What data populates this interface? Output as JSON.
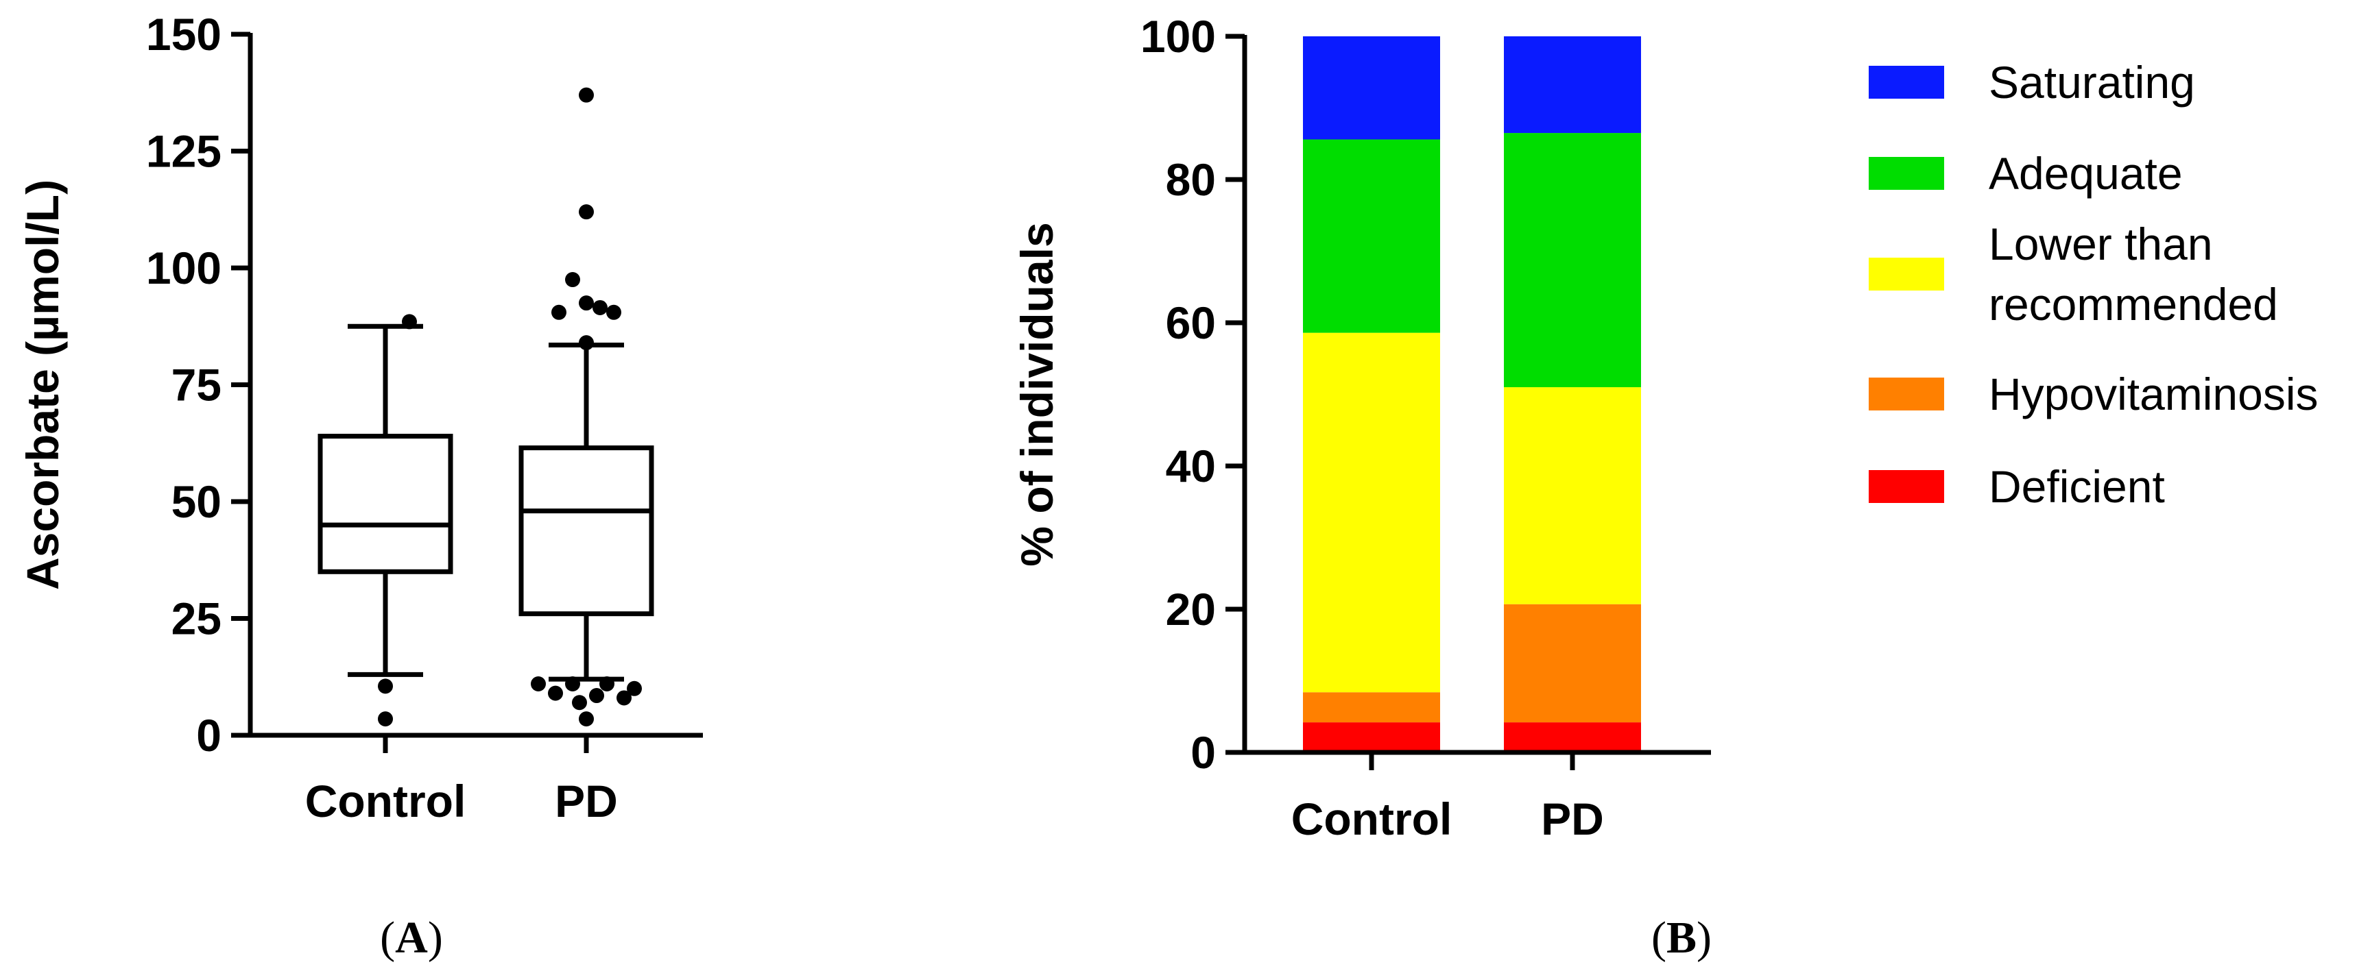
{
  "chart_data": [
    {
      "panel": "A",
      "type": "box",
      "ylabel": "Ascorbate (µmol/L)",
      "ylim": [
        0,
        150
      ],
      "yticks": [
        0,
        25,
        50,
        75,
        100,
        125,
        150
      ],
      "categories": [
        "Control",
        "PD"
      ],
      "boxes": [
        {
          "name": "Control",
          "whisker_low": 13,
          "q1": 35,
          "median": 45,
          "q3": 64,
          "whisker_high": 87.5,
          "outliers": [
            88.5,
            10.5,
            3.5
          ]
        },
        {
          "name": "PD",
          "whisker_low": 12,
          "q1": 26,
          "median": 48,
          "q3": 61.5,
          "whisker_high": 83.5,
          "outliers": [
            137,
            112,
            97.5,
            92.5,
            91.5,
            90.5,
            90.5,
            84,
            11,
            11,
            11,
            10,
            9,
            8.5,
            8,
            7,
            3.5
          ]
        }
      ]
    },
    {
      "panel": "B",
      "type": "stacked_bar",
      "ylabel": "% of individuals",
      "ylim": [
        0,
        100
      ],
      "yticks": [
        0,
        20,
        40,
        60,
        80,
        100
      ],
      "categories": [
        "Control",
        "PD"
      ],
      "series": [
        {
          "name": "Deficient",
          "color": "#ff0000",
          "values": [
            4.2,
            4.2
          ]
        },
        {
          "name": "Hypovitaminosis",
          "color": "#ff8000",
          "values": [
            4.2,
            16.5
          ]
        },
        {
          "name": "Lower than recommended",
          "color": "#ffff00",
          "values": [
            50.2,
            30.3
          ]
        },
        {
          "name": "Adequate",
          "color": "#00dd00",
          "values": [
            27,
            35.5
          ]
        },
        {
          "name": "Saturating",
          "color": "#0a1bff",
          "values": [
            14.4,
            13.5
          ]
        }
      ],
      "legend": [
        {
          "lines": [
            "Saturating"
          ],
          "color": "#0a1bff"
        },
        {
          "lines": [
            "Adequate"
          ],
          "color": "#00dd00"
        },
        {
          "lines": [
            "Lower than",
            "recommended"
          ],
          "color": "#ffff00"
        },
        {
          "lines": [
            "Hypovitaminosis"
          ],
          "color": "#ff8000"
        },
        {
          "lines": [
            "Deficient"
          ],
          "color": "#ff0000"
        }
      ],
      "legend_position": "right"
    }
  ],
  "panel_labels": {
    "a_open": "(",
    "a_letter": "A",
    "a_close": ")",
    "b_open": "(",
    "b_letter": "B",
    "b_close": ")"
  }
}
